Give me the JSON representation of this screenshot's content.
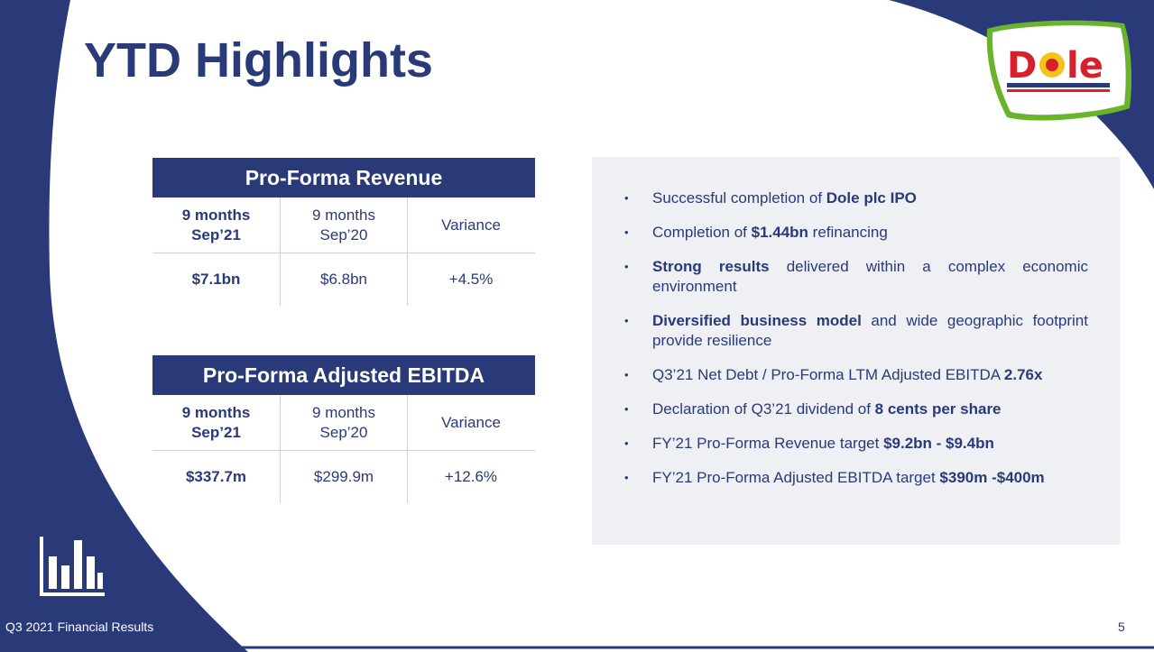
{
  "slide": {
    "title": "YTD Highlights",
    "footer": "Q3 2021 Financial Results",
    "page_number": "5",
    "logo_text": "Dole"
  },
  "revenue_table": {
    "heading": "Pro-Forma Revenue",
    "columns": [
      "9 months Sep’21",
      "9 months Sep’20",
      "Variance"
    ],
    "col1_line1": "9 months",
    "col1_line2": "Sep’21",
    "col2_line1": "9 months",
    "col2_line2": "Sep’20",
    "col3": "Variance",
    "values": [
      "$7.1bn",
      "$6.8bn",
      "+4.5%"
    ]
  },
  "ebitda_table": {
    "heading": "Pro-Forma Adjusted EBITDA",
    "col1_line1": "9 months",
    "col1_line2": "Sep’21",
    "col2_line1": "9 months",
    "col2_line2": "Sep’20",
    "col3": "Variance",
    "values": [
      "$337.7m",
      "$299.9m",
      "+12.6%"
    ]
  },
  "highlights": [
    {
      "pre": "Successful completion of ",
      "bold": "Dole plc IPO",
      "post": ""
    },
    {
      "pre": "Completion of ",
      "bold": "$1.44bn",
      "post": " refinancing"
    },
    {
      "pre": "",
      "bold": "Strong results",
      "post": " delivered within a complex economic environment"
    },
    {
      "pre": "",
      "bold": "Diversified business model",
      "post": " and wide geographic footprint provide resilience"
    },
    {
      "pre": "Q3’21 Net Debt / Pro-Forma LTM Adjusted EBITDA ",
      "bold": "2.76x",
      "post": ""
    },
    {
      "pre": "Declaration of Q3’21 dividend of ",
      "bold": "8 cents per share",
      "post": ""
    },
    {
      "pre": "FY’21 Pro-Forma Revenue target ",
      "bold": "$9.2bn - $9.4bn",
      "post": ""
    },
    {
      "pre": "FY’21 Pro-Forma Adjusted EBITDA target ",
      "bold": "$390m -$400m",
      "post": ""
    }
  ],
  "colors": {
    "navy": "#2a3a78",
    "panel": "#eef0f4",
    "logo_red": "#d8202a",
    "logo_green": "#6ab42d",
    "logo_yellow": "#f6c21c"
  },
  "icons": [
    "bar-chart-icon",
    "dole-logo"
  ]
}
